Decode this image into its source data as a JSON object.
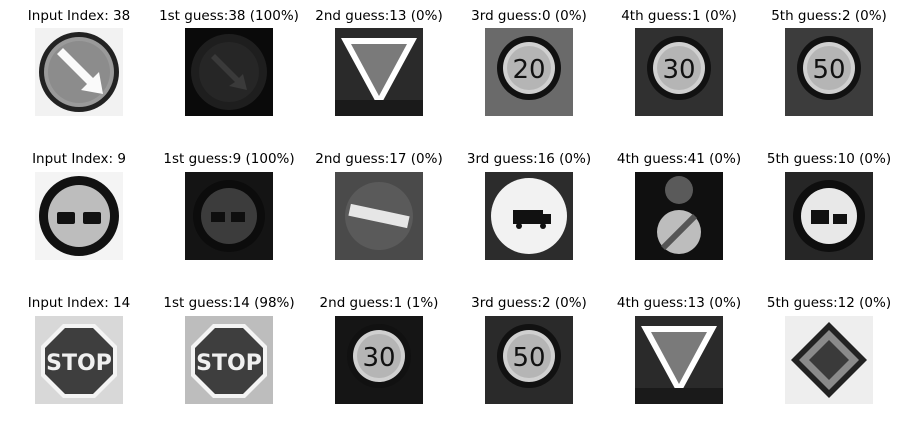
{
  "rows": [
    {
      "titles": [
        "Input Index: 38",
        "1st guess:38 (100%)",
        "2nd guess:13 (0%)",
        "3rd guess:0 (0%)",
        "4th guess:1 (0%)",
        "5th guess:2 (0%)"
      ],
      "tiles": [
        "arrow",
        "arrowDark",
        "yield",
        "limit",
        "limit",
        "limit"
      ],
      "tileLabels": [
        null,
        null,
        null,
        "20",
        "30",
        "50"
      ],
      "tileBg": [
        "#f2f2f2",
        "#0a0a0a",
        "#2a2a2a",
        "#6a6a6a",
        "#303030",
        "#3c3c3c"
      ]
    },
    {
      "titles": [
        "Input Index: 9",
        "1st guess:9 (100%)",
        "2nd guess:17 (0%)",
        "3rd guess:16 (0%)",
        "4th guess:41 (0%)",
        "5th guess:10 (0%)"
      ],
      "tiles": [
        "nopass",
        "nopassDark",
        "noentry",
        "truck",
        "endzone",
        "truckpass"
      ],
      "tileLabels": [
        null,
        null,
        null,
        null,
        null,
        null
      ],
      "tileBg": [
        "#f4f4f4",
        "#141414",
        "#4a4a4a",
        "#2c2c2c",
        "#101010",
        "#262626"
      ]
    },
    {
      "titles": [
        "Input Index: 14",
        "1st guess:14 (98%)",
        "2nd guess:1 (1%)",
        "3rd guess:2 (0%)",
        "4th guess:13 (0%)",
        "5th guess:12 (0%)"
      ],
      "tiles": [
        "stop",
        "stop",
        "limit",
        "limit",
        "yield",
        "priority"
      ],
      "tileLabels": [
        "STOP",
        "STOP",
        "30",
        "50",
        null,
        null
      ],
      "tileBg": [
        "#d8d8d8",
        "#bdbdbd",
        "#151515",
        "#2a2a2a",
        "#2a2a2a",
        "#eeeeee"
      ]
    }
  ]
}
